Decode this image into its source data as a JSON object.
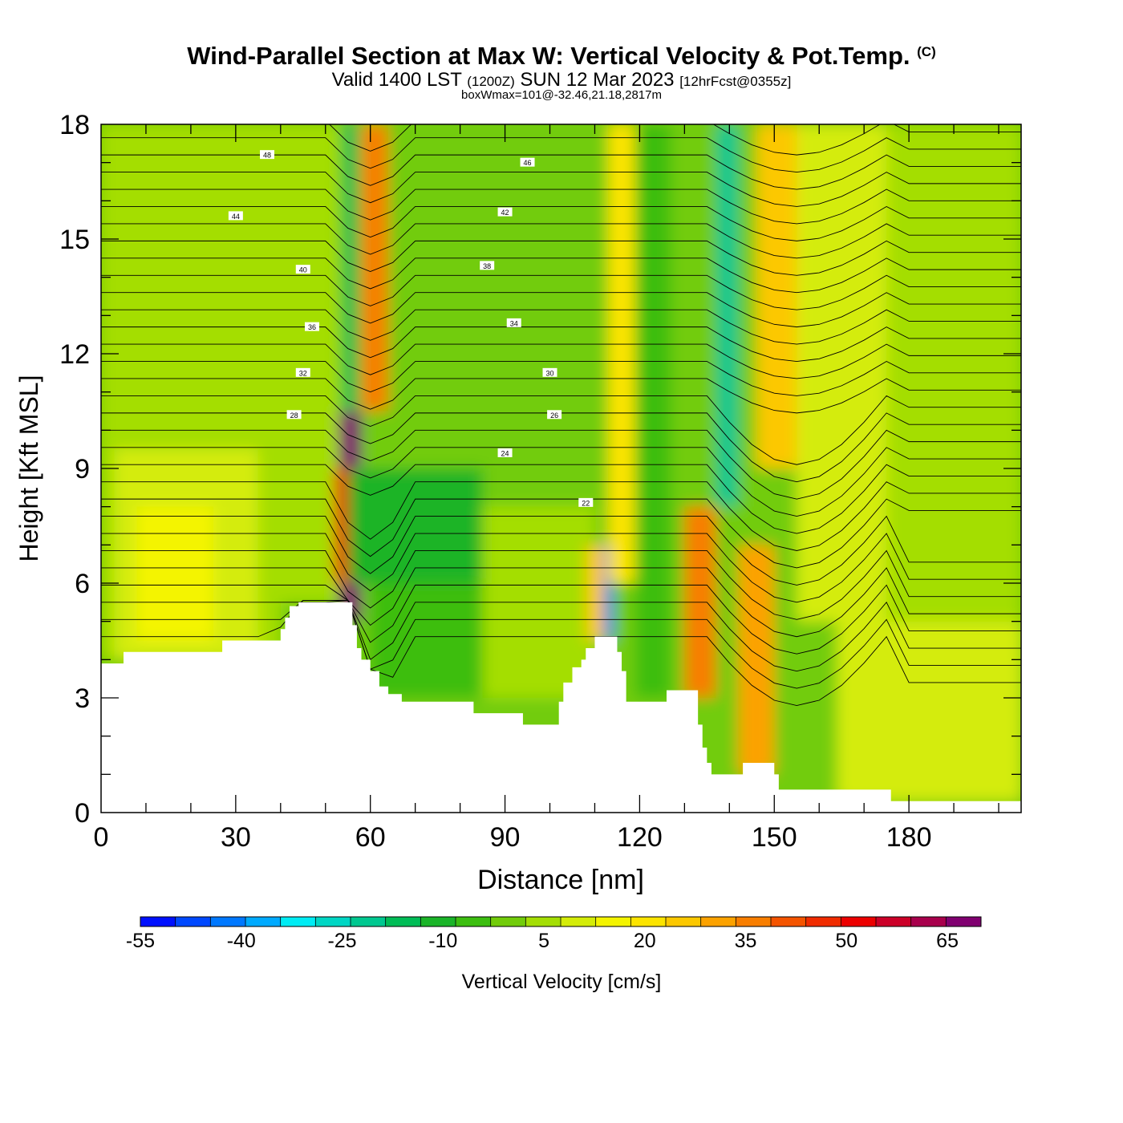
{
  "header": {
    "title": "Wind-Parallel Section at Max W: Vertical Velocity & Pot.Temp.",
    "copyright": "(C)",
    "valid_label": "Valid 1400 LST",
    "utc_label": "(1200Z)",
    "date_label": "SUN 12 Mar 2023",
    "forecast_label": "[12hrFcst@0355z]",
    "box_note": "boxWmax=101@-32.46,21.18,2817m"
  },
  "chart_data": {
    "type": "heatmap",
    "title": "Wind-Parallel Section at Max W: Vertical Velocity & Pot.Temp.",
    "xlabel": "Distance [nm]",
    "ylabel": "Height [Kft MSL]",
    "xlim": [
      0,
      205
    ],
    "ylim": [
      0,
      18
    ],
    "x_ticks": [
      0,
      30,
      60,
      90,
      120,
      150,
      180
    ],
    "y_ticks": [
      0,
      3,
      6,
      9,
      12,
      15,
      18
    ],
    "grid": false,
    "colorbar": {
      "label": "Vertical Velocity [cm/s]",
      "min": -55,
      "max": 70,
      "step": 5,
      "tick_labels": [
        -55,
        -40,
        -25,
        -10,
        5,
        20,
        35,
        50,
        65
      ],
      "colors": [
        "#0010ff",
        "#0048ff",
        "#0078ff",
        "#00aaff",
        "#00ecf4",
        "#00d6c4",
        "#00c890",
        "#00bc56",
        "#1ab428",
        "#3cbe10",
        "#72cc0a",
        "#a4de04",
        "#d4ec08",
        "#f4f400",
        "#fce400",
        "#fcc800",
        "#fca200",
        "#f87e00",
        "#f45400",
        "#f02c00",
        "#ec0000",
        "#cc0028",
        "#a8004c",
        "#800070"
      ]
    },
    "theta_contour_labels": [
      "48",
      "46",
      "44",
      "42",
      "40",
      "38",
      "36",
      "34",
      "32",
      "30",
      "28",
      "26",
      "24",
      "22"
    ],
    "terrain_kft": [
      [
        0,
        3.9
      ],
      [
        4,
        3.9
      ],
      [
        5,
        4.2
      ],
      [
        26,
        4.2
      ],
      [
        27,
        4.5
      ],
      [
        39,
        4.5
      ],
      [
        40,
        4.8
      ],
      [
        41,
        5.1
      ],
      [
        42,
        5.4
      ],
      [
        43,
        5.4
      ],
      [
        44,
        5.5
      ],
      [
        55,
        5.5
      ],
      [
        56,
        4.9
      ],
      [
        57,
        4.3
      ],
      [
        58,
        4.0
      ],
      [
        60,
        3.7
      ],
      [
        62,
        3.3
      ],
      [
        64,
        3.1
      ],
      [
        67,
        2.9
      ],
      [
        82,
        2.9
      ],
      [
        83,
        2.6
      ],
      [
        93,
        2.6
      ],
      [
        94,
        2.3
      ],
      [
        101,
        2.3
      ],
      [
        102,
        2.9
      ],
      [
        103,
        3.4
      ],
      [
        105,
        3.8
      ],
      [
        107,
        4.0
      ],
      [
        108,
        4.3
      ],
      [
        110,
        4.6
      ],
      [
        114,
        4.6
      ],
      [
        115,
        4.2
      ],
      [
        116,
        3.7
      ],
      [
        117,
        2.9
      ],
      [
        125,
        2.9
      ],
      [
        126,
        3.2
      ],
      [
        132,
        3.2
      ],
      [
        133,
        2.3
      ],
      [
        134,
        1.7
      ],
      [
        135,
        1.3
      ],
      [
        136,
        1.0
      ],
      [
        142,
        1.0
      ],
      [
        143,
        1.3
      ],
      [
        149,
        1.3
      ],
      [
        150,
        1.0
      ],
      [
        151,
        0.6
      ],
      [
        164,
        0.6
      ],
      [
        175,
        0.6
      ],
      [
        176,
        0.3
      ],
      [
        205,
        0.3
      ]
    ],
    "velocity_field": [
      {
        "x0": 0,
        "x1": 40,
        "y0": 4,
        "y1": 18,
        "value": 0
      },
      {
        "x0": 40,
        "x1": 53,
        "y0": 5.5,
        "y1": 18,
        "value": 2
      },
      {
        "x0": 3,
        "x1": 35,
        "y0": 4,
        "y1": 9.5,
        "value": 5
      },
      {
        "x0": 8,
        "x1": 25,
        "y0": 4.5,
        "y1": 8,
        "value": 10
      },
      {
        "x0": 53,
        "x1": 58,
        "y0": 5,
        "y1": 10.5,
        "value": 65
      },
      {
        "x0": 52,
        "x1": 55,
        "y0": 6,
        "y1": 9,
        "value": 45
      },
      {
        "x0": 54,
        "x1": 57,
        "y0": 10.5,
        "y1": 18,
        "value": -20
      },
      {
        "x0": 58,
        "x1": 64,
        "y0": 10.5,
        "y1": 18,
        "value": 30
      },
      {
        "x0": 55,
        "x1": 85,
        "y0": 6,
        "y1": 9,
        "value": -12
      },
      {
        "x0": 60,
        "x1": 100,
        "y0": 3,
        "y1": 6,
        "value": -8
      },
      {
        "x0": 85,
        "x1": 110,
        "y0": 3,
        "y1": 8,
        "value": 0
      },
      {
        "x0": 108,
        "x1": 112,
        "y0": 4.5,
        "y1": 7,
        "value": 20
      },
      {
        "x0": 112,
        "x1": 114,
        "y0": 4.5,
        "y1": 7,
        "value": -45
      },
      {
        "x0": 113,
        "x1": 119,
        "y0": 6,
        "y1": 18,
        "value": 18
      },
      {
        "x0": 119,
        "x1": 127,
        "y0": 3,
        "y1": 18,
        "value": -10
      },
      {
        "x0": 130,
        "x1": 137,
        "y0": 3,
        "y1": 8,
        "value": 30
      },
      {
        "x0": 137,
        "x1": 142,
        "y0": 8,
        "y1": 18,
        "value": -22
      },
      {
        "x0": 142,
        "x1": 150,
        "y0": 1,
        "y1": 7,
        "value": 28
      },
      {
        "x0": 146,
        "x1": 156,
        "y0": 9,
        "y1": 18,
        "value": 22
      },
      {
        "x0": 155,
        "x1": 175,
        "y0": 5,
        "y1": 18,
        "value": 8
      },
      {
        "x0": 175,
        "x1": 205,
        "y0": 0.3,
        "y1": 18,
        "value": 2
      },
      {
        "x0": 164,
        "x1": 205,
        "y0": 0.3,
        "y1": 5,
        "value": 5
      }
    ]
  },
  "colorbar": {
    "tick_texts": [
      "-55",
      "-40",
      "-25",
      "-10",
      "5",
      "20",
      "35",
      "50",
      "65"
    ]
  },
  "axes": {
    "x_tick_texts": [
      "0",
      "30",
      "60",
      "90",
      "120",
      "150",
      "180"
    ],
    "y_tick_texts": [
      "0",
      "3",
      "6",
      "9",
      "12",
      "15",
      "18"
    ],
    "xlabel": "Distance [nm]",
    "ylabel": "Height [Kft MSL]",
    "colorbar_label": "Vertical Velocity [cm/s]"
  }
}
